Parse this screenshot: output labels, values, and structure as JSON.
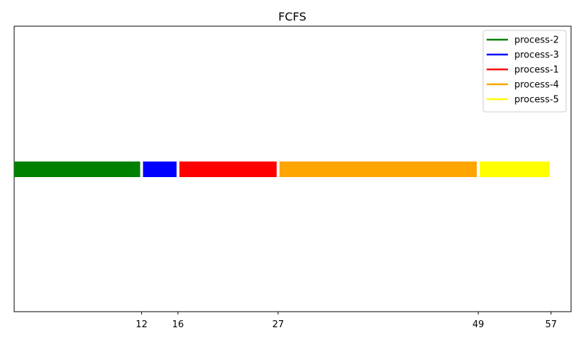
{
  "chart_data": {
    "type": "gantt",
    "title": "FCFS",
    "xlabel": "",
    "ylabel": "",
    "x_start": -2,
    "xlim": [
      -2,
      59.2
    ],
    "x_ticks": [
      12,
      16,
      27,
      49,
      57
    ],
    "legend_placement": "top-right",
    "grid": false,
    "series": [
      {
        "name": "process-2",
        "start": 0,
        "end": 12,
        "color": "#008000"
      },
      {
        "name": "process-3",
        "start": 12,
        "end": 16,
        "color": "#0000ff"
      },
      {
        "name": "process-1",
        "start": 16,
        "end": 27,
        "color": "#ff0000"
      },
      {
        "name": "process-4",
        "start": 27,
        "end": 49,
        "color": "#ffa500"
      },
      {
        "name": "process-5",
        "start": 49,
        "end": 57,
        "color": "#ffff00"
      }
    ]
  }
}
